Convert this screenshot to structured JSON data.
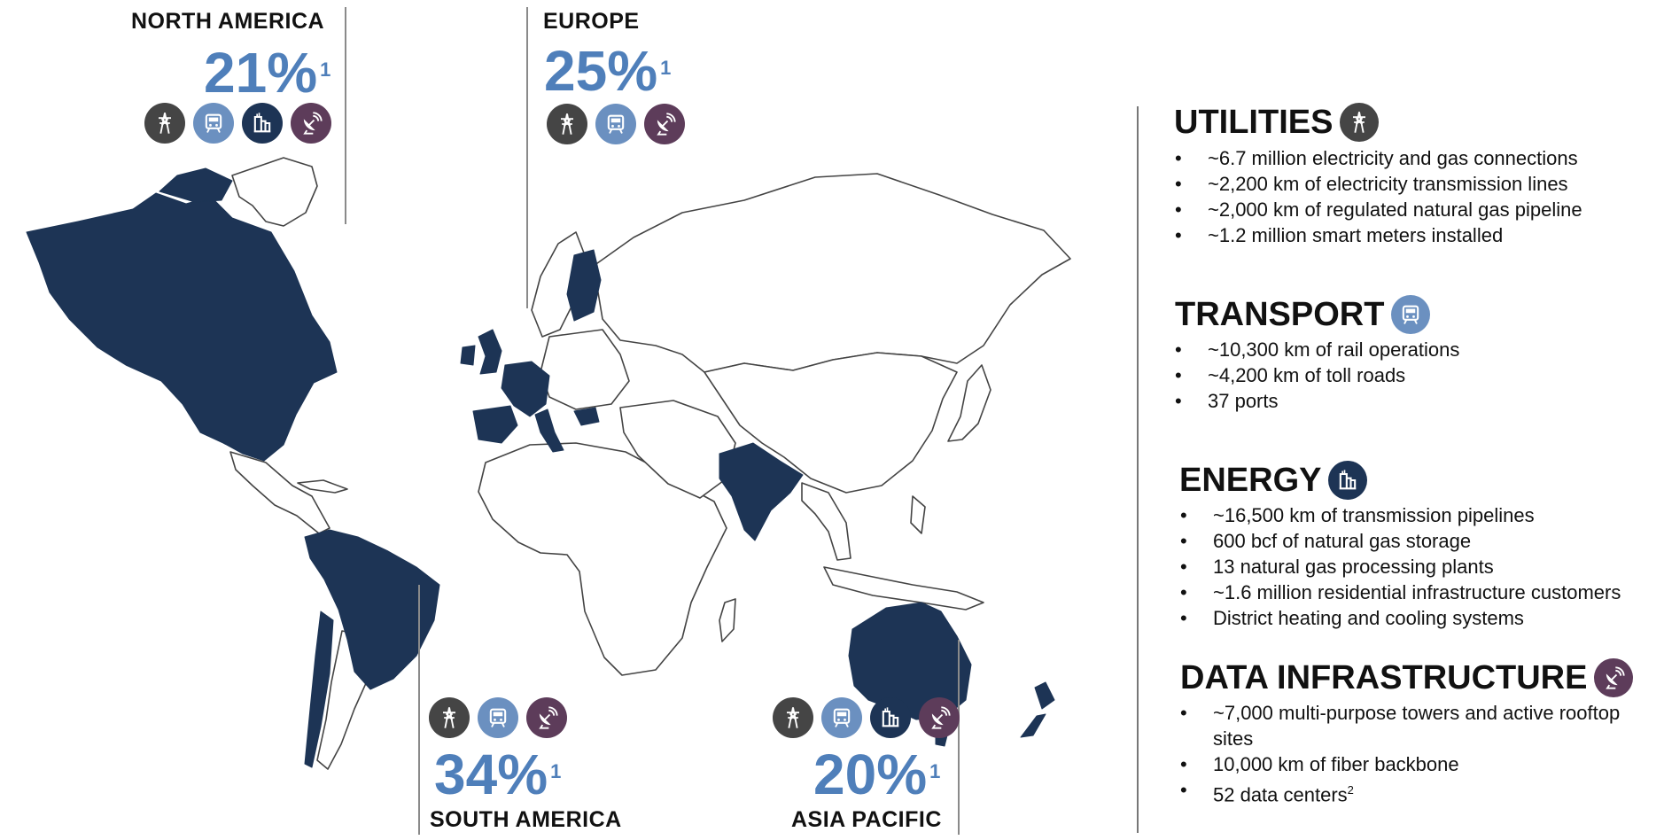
{
  "regions": {
    "north_america": {
      "name": "NORTH AMERICA",
      "pct": "21%",
      "note": "1",
      "icons": [
        "utilities-icon",
        "transport-icon",
        "energy-icon",
        "data-icon"
      ]
    },
    "europe": {
      "name": "EUROPE",
      "pct": "25%",
      "note": "1",
      "icons": [
        "utilities-icon",
        "transport-icon",
        "data-icon"
      ]
    },
    "south_america": {
      "name": "SOUTH AMERICA",
      "pct": "34%",
      "note": "1",
      "icons": [
        "utilities-icon",
        "transport-icon",
        "data-icon"
      ]
    },
    "asia_pacific": {
      "name": "ASIA PACIFIC",
      "pct": "20%",
      "note": "1",
      "icons": [
        "utilities-icon",
        "transport-icon",
        "energy-icon",
        "data-icon"
      ]
    }
  },
  "sections": {
    "utilities": {
      "title": "UTILITIES",
      "icon": "utilities-icon",
      "items": [
        "~6.7 million electricity and gas connections",
        "~2,200 km of electricity transmission lines",
        "~2,000 km of regulated natural gas pipeline",
        "~1.2 million smart meters installed"
      ]
    },
    "transport": {
      "title": "TRANSPORT",
      "icon": "transport-icon",
      "items": [
        "~10,300 km of rail operations",
        "~4,200 km of toll roads",
        "37 ports"
      ]
    },
    "energy": {
      "title": "ENERGY",
      "icon": "energy-icon",
      "items": [
        "~16,500 km of transmission pipelines",
        "600 bcf of natural gas storage",
        "13 natural gas processing plants",
        "~1.6 million residential infrastructure customers",
        "District heating and cooling systems"
      ]
    },
    "data": {
      "title": "DATA INFRASTRUCTURE",
      "icon": "data-icon",
      "items": [
        "~7,000 multi-purpose towers and active rooftop sites",
        "10,000 km of fiber backbone",
        "52 data centers"
      ],
      "last_item_note": "2"
    }
  },
  "colors": {
    "highlight": "#1d3455",
    "percent": "#4f7fba",
    "utilities": "#454545",
    "transport": "#6b90c0",
    "energy": "#1d3455",
    "data": "#5d3c5a"
  }
}
